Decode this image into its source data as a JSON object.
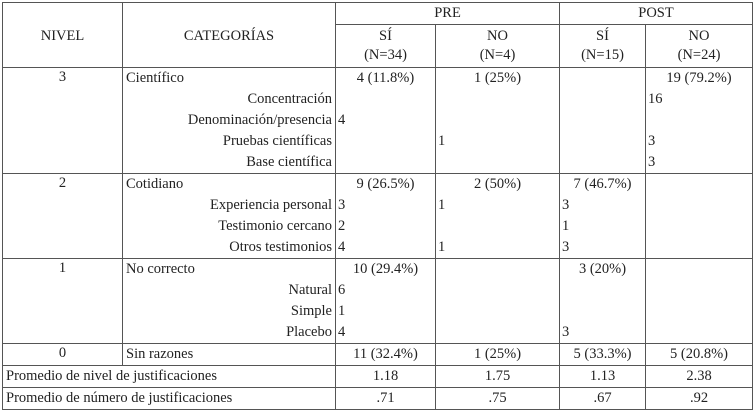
{
  "header": {
    "nivel": "NIVEL",
    "categorias": "CATEGORÍAS",
    "groups": [
      "PRE",
      "POST"
    ],
    "columns": [
      {
        "label": "SÍ",
        "n": "(N=34)"
      },
      {
        "label": "NO",
        "n": "(N=4)"
      },
      {
        "label": "SÍ",
        "n": "(N=15)"
      },
      {
        "label": "NO",
        "n": "(N=24)"
      }
    ]
  },
  "groups": [
    {
      "nivel": "3",
      "rows": [
        {
          "label": "Científico",
          "main": true,
          "cells": [
            "4 (11.8%)",
            "1 (25%)",
            null,
            "19 (79.2%)"
          ]
        },
        {
          "label": "Concentración",
          "main": false,
          "cells": [
            null,
            null,
            null,
            "16"
          ]
        },
        {
          "label": "Denominación/presencia",
          "main": false,
          "cells": [
            "4",
            null,
            null,
            null
          ]
        },
        {
          "label": "Pruebas científicas",
          "main": false,
          "cells": [
            null,
            "1",
            null,
            "3"
          ]
        },
        {
          "label": "Base científica",
          "main": false,
          "cells": [
            null,
            null,
            null,
            "3"
          ]
        }
      ]
    },
    {
      "nivel": "2",
      "rows": [
        {
          "label": "Cotidiano",
          "main": true,
          "cells": [
            "9 (26.5%)",
            "2 (50%)",
            "7 (46.7%)",
            null
          ]
        },
        {
          "label": "Experiencia personal",
          "main": false,
          "cells": [
            "3",
            "1",
            "3",
            null
          ]
        },
        {
          "label": "Testimonio cercano",
          "main": false,
          "cells": [
            "2",
            null,
            "1",
            null
          ]
        },
        {
          "label": "Otros testimonios",
          "main": false,
          "cells": [
            "4",
            "1",
            "3",
            null
          ]
        }
      ]
    },
    {
      "nivel": "1",
      "rows": [
        {
          "label": "No correcto",
          "main": true,
          "cells": [
            "10 (29.4%)",
            null,
            "3 (20%)",
            null
          ]
        },
        {
          "label": "Natural",
          "main": false,
          "cells": [
            "6",
            null,
            null,
            null
          ]
        },
        {
          "label": "Simple",
          "main": false,
          "cells": [
            "1",
            null,
            null,
            null
          ]
        },
        {
          "label": "Placebo",
          "main": false,
          "cells": [
            "4",
            null,
            "3",
            null
          ]
        }
      ]
    },
    {
      "nivel": "0",
      "rows": [
        {
          "label": "Sin razones",
          "main": true,
          "cells": [
            "11 (32.4%)",
            "1 (25%)",
            "5 (33.3%)",
            "5 (20.8%)"
          ]
        }
      ]
    }
  ],
  "averages": [
    {
      "label": "Promedio de nivel de justificaciones",
      "values": [
        "1.18",
        "1.75",
        "1.13",
        "2.38"
      ]
    },
    {
      "label": "Promedio de número de justificaciones",
      "values": [
        ".71",
        ".75",
        ".67",
        ".92"
      ]
    }
  ]
}
